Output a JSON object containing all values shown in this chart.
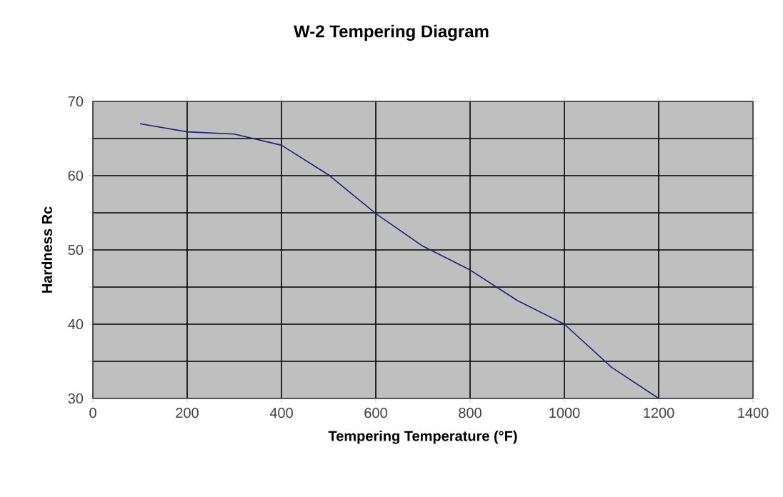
{
  "chart_data": {
    "type": "line",
    "title": "W-2 Tempering Diagram",
    "xlabel": "Tempering Temperature (°F)",
    "ylabel": "Hardness Rc",
    "x": [
      100,
      200,
      300,
      400,
      500,
      600,
      700,
      800,
      900,
      1000,
      1100,
      1200
    ],
    "series": [
      {
        "color": "#1f1f7a",
        "values": [
          67.0,
          65.9,
          65.6,
          64.1,
          60.1,
          54.9,
          50.5,
          47.3,
          43.2,
          40.0,
          34.2,
          30.0
        ]
      }
    ],
    "xlim": [
      0,
      1400
    ],
    "xticks": [
      0,
      200,
      400,
      600,
      800,
      1000,
      1200,
      1400
    ],
    "ylim": [
      30,
      70
    ],
    "yticks": [
      30,
      {
        "value": 35,
        "label": null
      },
      40,
      {
        "value": 45,
        "label": null
      },
      50,
      {
        "value": 55,
        "label": null
      },
      60,
      {
        "value": 65,
        "label": null
      },
      70
    ],
    "grid": true,
    "marker": "none",
    "line_style": "solid"
  }
}
